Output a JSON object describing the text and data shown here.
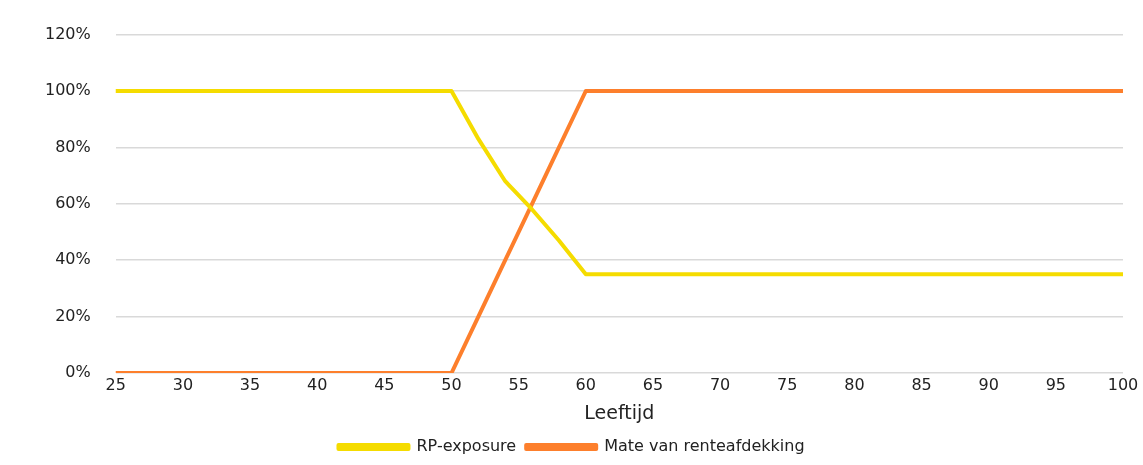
{
  "chart_data": {
    "type": "line",
    "xlabel": "Leeftijd",
    "xlim": [
      25,
      100
    ],
    "xticks": [
      25,
      30,
      35,
      40,
      45,
      50,
      55,
      60,
      65,
      70,
      75,
      80,
      85,
      90,
      95,
      100
    ],
    "ylim": [
      0,
      1.2
    ],
    "yticks": [
      {
        "value": 0,
        "label": "0%"
      },
      {
        "value": 0.2,
        "label": "20%"
      },
      {
        "value": 0.4,
        "label": "40%"
      },
      {
        "value": 0.6,
        "label": "60%"
      },
      {
        "value": 0.8,
        "label": "80%"
      },
      {
        "value": 1,
        "label": "100%"
      },
      {
        "value": 1.2,
        "label": "120%"
      }
    ],
    "grid": "y",
    "legend": "bottom",
    "marker": "none",
    "line_style": "solid",
    "series": [
      {
        "name": "RP-exposure",
        "color": "#f5dc00",
        "x": [
          25,
          50,
          52,
          54,
          56,
          58,
          60,
          100
        ],
        "values": [
          1,
          1,
          0.83,
          0.68,
          0.58,
          0.47,
          0.35,
          0.35
        ]
      },
      {
        "name": "Mate van renteafdekking",
        "color": "#fd7f2c",
        "x": [
          25,
          50,
          52,
          54,
          56,
          58,
          60,
          100
        ],
        "values": [
          0,
          0,
          0.2,
          0.4,
          0.6,
          0.8,
          1,
          1
        ]
      }
    ]
  }
}
